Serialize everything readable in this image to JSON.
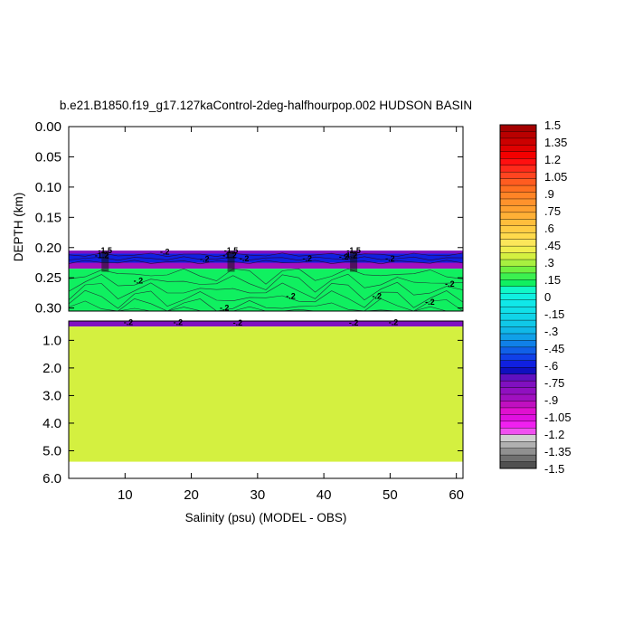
{
  "chart_data": {
    "type": "heatmap",
    "title": "b.e21.B1850.f19_g17.127kaControl-2deg-halfhourpop.002 HUDSON BASIN",
    "xlabel": "Salinity (psu) (MODEL - OBS)",
    "ylabel": "DEPTH (km)",
    "xlim": [
      1.5,
      61
    ],
    "x_ticks": [
      "10",
      "20",
      "30",
      "40",
      "50",
      "60"
    ],
    "upper_panel": {
      "ylim": [
        0.0,
        0.305
      ],
      "y_ticks": [
        "0.00",
        "0.05",
        "0.10",
        "0.15",
        "0.20",
        "0.25",
        "0.30"
      ],
      "layers": [
        {
          "depth_top": 0.0,
          "depth_bottom": 0.205,
          "value": "missing"
        },
        {
          "depth_top": 0.205,
          "depth_bottom": 0.21,
          "value": -1.4
        },
        {
          "depth_top": 0.21,
          "depth_bottom": 0.225,
          "value": -1.15
        },
        {
          "depth_top": 0.225,
          "depth_bottom": 0.235,
          "value": -1.5
        },
        {
          "depth_top": 0.235,
          "depth_bottom": 0.305,
          "value": -0.25
        }
      ]
    },
    "lower_panel": {
      "ylim": [
        0.3,
        6.0
      ],
      "y_ticks": [
        "1.0",
        "2.0",
        "3.0",
        "4.0",
        "5.0",
        "6.0"
      ],
      "layers": [
        {
          "depth_top": 0.3,
          "depth_bottom": 0.5,
          "value": -1.4
        },
        {
          "depth_top": 0.5,
          "depth_bottom": 5.4,
          "value": 0.05
        },
        {
          "depth_top": 5.4,
          "depth_bottom": 6.0,
          "value": "missing"
        }
      ]
    },
    "contour_labels": [
      {
        "text": "-1.5",
        "x": 7,
        "depth": 0.205
      },
      {
        "text": "-1.5",
        "x": 26,
        "depth": 0.205
      },
      {
        "text": "-1.5",
        "x": 44.5,
        "depth": 0.205
      },
      {
        "text": "-1.2",
        "x": 6.5,
        "depth": 0.213
      },
      {
        "text": "-1.2",
        "x": 25.8,
        "depth": 0.213
      },
      {
        "text": "-1.2",
        "x": 44,
        "depth": 0.213
      },
      {
        "text": "-.2",
        "x": 16,
        "depth": 0.207
      },
      {
        "text": "-.2",
        "x": 22,
        "depth": 0.219
      },
      {
        "text": "-.2",
        "x": 28,
        "depth": 0.218
      },
      {
        "text": "-.2",
        "x": 37.5,
        "depth": 0.218
      },
      {
        "text": "-.2",
        "x": 43,
        "depth": 0.215
      },
      {
        "text": "-.2",
        "x": 50,
        "depth": 0.218
      },
      {
        "text": "-.2",
        "x": 12,
        "depth": 0.255
      },
      {
        "text": "-.2",
        "x": 59,
        "depth": 0.26
      },
      {
        "text": "-.2",
        "x": 25,
        "depth": 0.3
      },
      {
        "text": "-.2",
        "x": 35,
        "depth": 0.28
      },
      {
        "text": "-.2",
        "x": 48,
        "depth": 0.28
      },
      {
        "text": "-.2",
        "x": 56,
        "depth": 0.29
      },
      {
        "text": "-.2",
        "x": 10.5,
        "depth": 0.35
      },
      {
        "text": "-.2",
        "x": 18,
        "depth": 0.35
      },
      {
        "text": "-.2",
        "x": 27,
        "depth": 0.37
      },
      {
        "text": "-.2",
        "x": 44.5,
        "depth": 0.37
      },
      {
        "text": "-.2",
        "x": 50.5,
        "depth": 0.35
      }
    ],
    "colorbar": {
      "labels": [
        "1.5",
        "1.35",
        "1.2",
        "1.05",
        ".9",
        ".75",
        ".6",
        ".45",
        ".3",
        ".15",
        "0",
        "-.15",
        "-.3",
        "-.45",
        "-.6",
        "-.75",
        "-.9",
        "-1.05",
        "-1.2",
        "-1.35",
        "-1.5"
      ],
      "min": -1.5,
      "max": 1.5,
      "step": 0.075,
      "colors": [
        "#a40000",
        "#b80000",
        "#cc0000",
        "#e00000",
        "#f40000",
        "#ff1010",
        "#ff2a1a",
        "#ff4420",
        "#ff5c20",
        "#ff7020",
        "#ff8426",
        "#ff922c",
        "#ffa030",
        "#ffb036",
        "#ffbe3c",
        "#ffcc44",
        "#ffda4c",
        "#fce65a",
        "#f0ee4e",
        "#d4f040",
        "#a8f040",
        "#70f040",
        "#3cf050",
        "#10f060",
        "#10f8c8",
        "#10f0e0",
        "#10e8e8",
        "#10e0e8",
        "#10d4e8",
        "#10c8e8",
        "#10b8e8",
        "#10a0e8",
        "#1080e8",
        "#1060e8",
        "#1040e8",
        "#1020e0",
        "#1010c0",
        "#6010c0",
        "#8010c0",
        "#9010c0",
        "#a010c0",
        "#c010c0",
        "#e010d0",
        "#e010e0",
        "#f020f0",
        "#f050f0",
        "#d0d0d0",
        "#b0b0b0",
        "#909090",
        "#707070",
        "#505050"
      ]
    }
  }
}
